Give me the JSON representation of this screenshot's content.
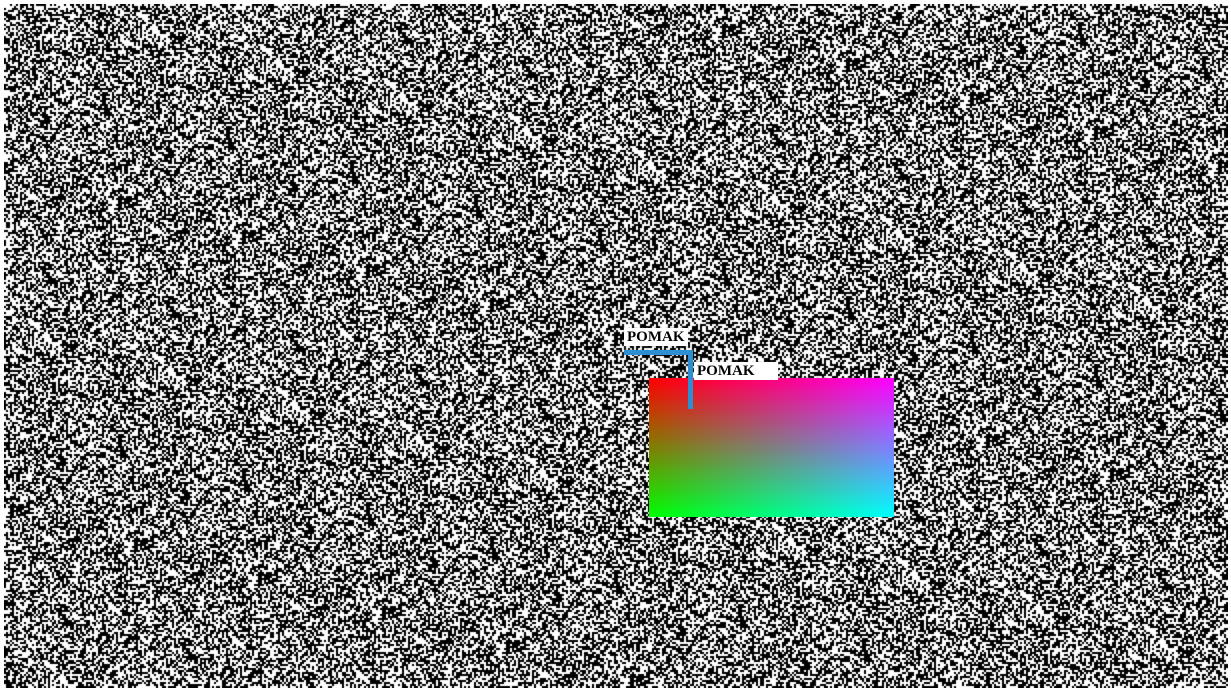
{
  "screen": {
    "labels": [
      "POMAK",
      "POMAK"
    ]
  },
  "colors": {
    "noise_dark": "#000000",
    "noise_light": "#ffffff",
    "marker": "#2b8fd1",
    "gradient_top_left": "#ff0000",
    "gradient_top_right": "#ff00ff",
    "gradient_bottom_left": "#00ff00",
    "gradient_bottom_right": "#00ffff"
  },
  "icons": {
    "marker": "corner-marker-icon"
  }
}
